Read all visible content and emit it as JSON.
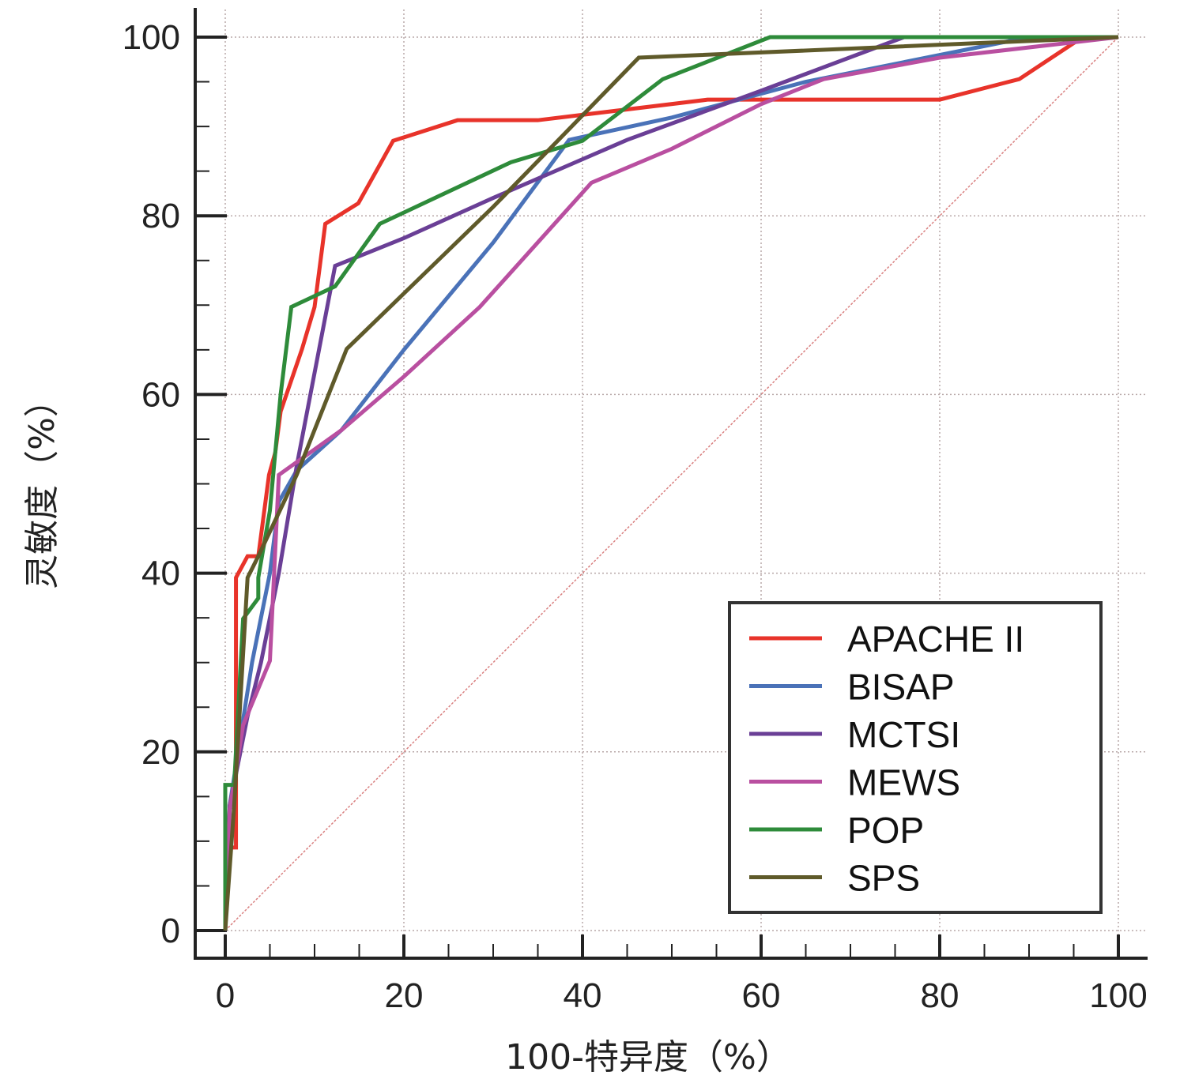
{
  "chart_data": {
    "type": "line",
    "xlabel": "100-特异度（%）",
    "ylabel": "灵敏度（%）",
    "xlim": [
      0,
      100
    ],
    "ylim": [
      0,
      100
    ],
    "xticks": [
      "0",
      "20",
      "40",
      "60",
      "80",
      "100"
    ],
    "yticks": [
      "0",
      "20",
      "40",
      "60",
      "80",
      "100"
    ],
    "grid": true,
    "legend_position": "bottom-right",
    "reference_line": {
      "x": [
        0,
        100
      ],
      "y": [
        0,
        100
      ],
      "color": "#d98080"
    },
    "series": [
      {
        "name": "APACHE II",
        "color": "#e8332a",
        "x": [
          0,
          0,
          1.2,
          1.2,
          2.5,
          3.7,
          4.9,
          5.6,
          6.2,
          8.6,
          10,
          11.2,
          14.9,
          18.8,
          26,
          35,
          54,
          80,
          88.9,
          96,
          100
        ],
        "y": [
          0,
          9.3,
          9.3,
          39.5,
          41.9,
          41.9,
          51,
          53.5,
          58.1,
          65.1,
          69.8,
          79.1,
          81.4,
          88.4,
          90.7,
          90.7,
          93,
          93,
          95.3,
          100,
          100
        ]
      },
      {
        "name": "BISAP",
        "color": "#4a72b8",
        "x": [
          0,
          0.5,
          3,
          5,
          6,
          8,
          13,
          20,
          30,
          38.5,
          50,
          65,
          80,
          90,
          100
        ],
        "y": [
          0,
          14,
          30,
          40,
          48,
          51.5,
          56,
          65,
          77,
          88.5,
          91,
          95,
          98,
          100,
          100
        ]
      },
      {
        "name": "MCTSI",
        "color": "#6a3f96",
        "x": [
          0,
          0.5,
          2.5,
          4,
          6,
          8,
          12.3,
          20,
          30,
          45,
          60,
          76,
          100
        ],
        "y": [
          0,
          14,
          24,
          30,
          40,
          52,
          74.4,
          77.5,
          82,
          88.5,
          94,
          100,
          100
        ]
      },
      {
        "name": "MEWS",
        "color": "#b94fa0",
        "x": [
          0,
          0.5,
          2,
          5,
          6,
          13,
          20,
          28.5,
          41,
          50,
          60,
          67,
          80,
          100
        ],
        "y": [
          0,
          13.5,
          23,
          30.2,
          51,
          56,
          62,
          69.8,
          83.7,
          87.5,
          92.5,
          95.3,
          97.7,
          100
        ]
      },
      {
        "name": "POP",
        "color": "#2e8b3a",
        "x": [
          0,
          0,
          1,
          2,
          3.7,
          3.7,
          5,
          6.2,
          7.4,
          12.3,
          17.3,
          32,
          40,
          49,
          61,
          100
        ],
        "y": [
          0,
          16.3,
          16.3,
          34.9,
          37.2,
          39.5,
          47,
          60,
          69.8,
          72.1,
          79.1,
          86,
          88.4,
          95.3,
          100,
          100
        ]
      },
      {
        "name": "SPS",
        "color": "#5f5a2a",
        "x": [
          0,
          1,
          2.5,
          3.7,
          8,
          13.6,
          30,
          46.3,
          100
        ],
        "y": [
          0,
          14,
          39.5,
          41.9,
          51,
          65.1,
          81,
          97.7,
          100
        ]
      }
    ]
  }
}
